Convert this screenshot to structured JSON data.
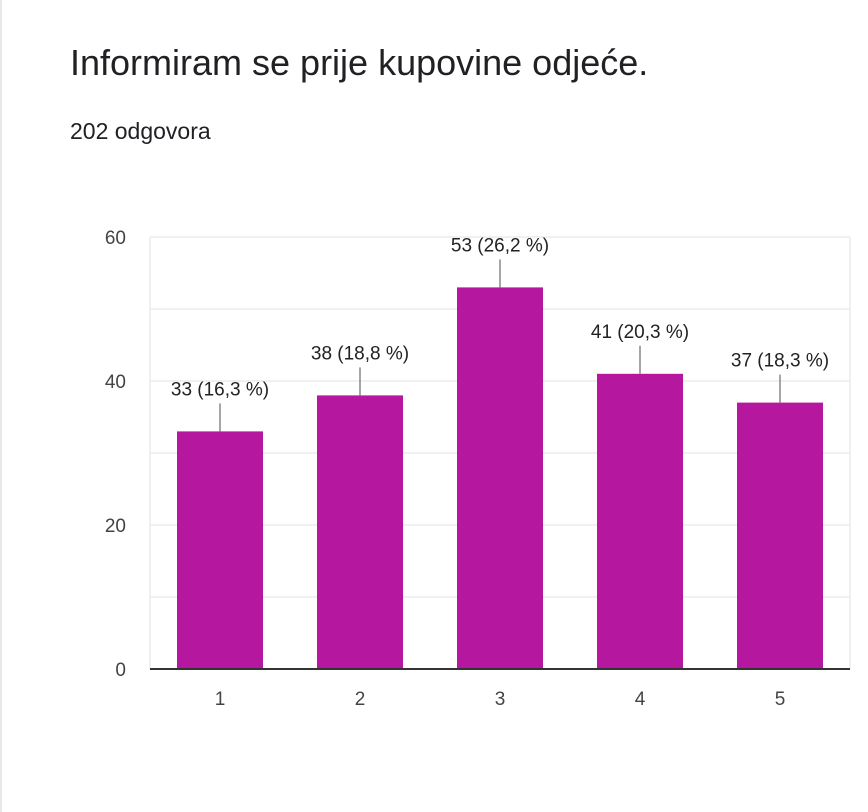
{
  "question_title": "Informiram se prije kupovine odjeće.",
  "response_count": "202 odgovora",
  "colors": {
    "bar": "#b5179e",
    "grid": "#ececec",
    "axis": "#333333"
  },
  "chart_data": {
    "type": "bar",
    "title": "Informiram se prije kupovine odjeće.",
    "subtitle": "202 odgovora",
    "categories": [
      "1",
      "2",
      "3",
      "4",
      "5"
    ],
    "values": [
      33,
      38,
      53,
      41,
      37
    ],
    "percentages": [
      "16,3 %",
      "18,8 %",
      "26,2 %",
      "20,3 %",
      "18,3 %"
    ],
    "data_labels": [
      "33 (16,3 %)",
      "38 (18,8 %)",
      "53 (26,2 %)",
      "41 (20,3 %)",
      "37 (18,3 %)"
    ],
    "y_ticks": [
      0,
      20,
      40,
      60
    ],
    "ylim": [
      0,
      60
    ],
    "xlabel": "",
    "ylabel": "",
    "grid": true,
    "legend": "none"
  }
}
